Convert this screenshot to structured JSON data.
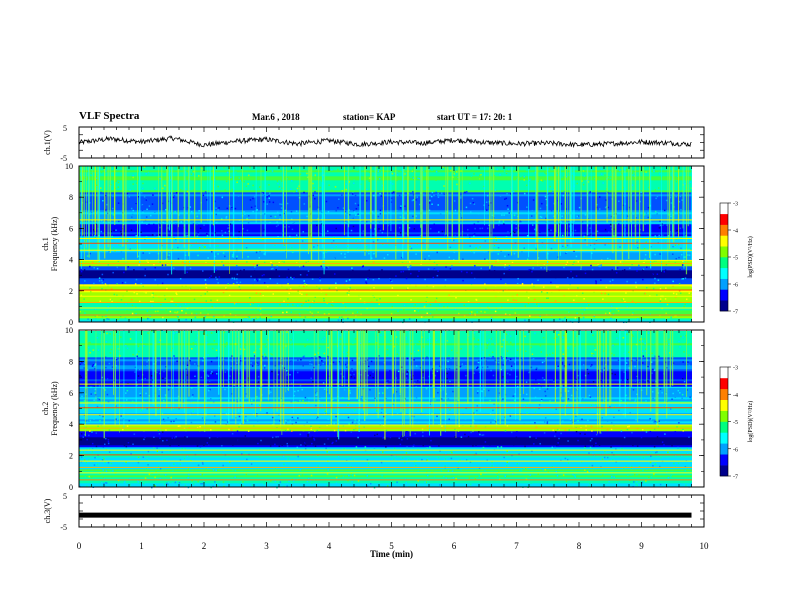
{
  "header": {
    "title": "VLF Spectra",
    "date": "Mar.6 , 2018",
    "station": "station= KAP",
    "start": "start UT = 17: 20: 1"
  },
  "colorbar": {
    "label": "log(PSD)(V²/Hz)",
    "ticks": [
      "-3",
      "-4",
      "-5",
      "-6",
      "-7"
    ],
    "range": [
      -7,
      -3
    ],
    "colors": [
      "#00008c",
      "#0000ff",
      "#00a0ff",
      "#00ffff",
      "#00ff80",
      "#80ff00",
      "#ffff00",
      "#ff8000",
      "#ff0000",
      "#ffffff"
    ]
  },
  "chart_data": [
    {
      "type": "line",
      "panel": "ch1-waveform",
      "ylabel": "ch.1(V)",
      "ylim": [
        -5,
        5
      ],
      "yticks": [
        "5",
        "-5"
      ],
      "xlim": [
        0,
        10
      ],
      "x": [
        0,
        0.5,
        1,
        1.5,
        2,
        2.5,
        3,
        3.5,
        4,
        4.5,
        5,
        5.5,
        6,
        6.5,
        7,
        7.5,
        8,
        8.5,
        9,
        9.5,
        9.8
      ],
      "y": [
        0,
        1.2,
        0.2,
        1.4,
        -0.8,
        0.4,
        1.0,
        -0.4,
        0.6,
        -0.6,
        0.2,
        -0.2,
        0.8,
        0.0,
        -0.4,
        -0.2,
        -0.8,
        -0.4,
        0.2,
        -0.2,
        -0.6
      ]
    },
    {
      "type": "heatmap",
      "panel": "ch1-spectrogram",
      "ylabel": "ch.1",
      "ylabel2": "Frequency (kHz)",
      "xlim": [
        0,
        10
      ],
      "ylim": [
        0,
        10
      ],
      "yticks": [
        "0",
        "2",
        "4",
        "6",
        "8",
        "10"
      ]
    },
    {
      "type": "heatmap",
      "panel": "ch2-spectrogram",
      "ylabel": "ch.2",
      "ylabel2": "Frequency (kHz)",
      "xlim": [
        0,
        10
      ],
      "ylim": [
        0,
        10
      ],
      "yticks": [
        "0",
        "2",
        "4",
        "6",
        "8",
        "10"
      ]
    },
    {
      "type": "line",
      "panel": "ch3-waveform",
      "ylabel": "ch.3(V)",
      "ylim": [
        -5,
        5
      ],
      "yticks": [
        "5",
        "-5"
      ],
      "xlim": [
        0,
        10
      ],
      "x": [
        0,
        9.8
      ],
      "y": [
        -1.3,
        -1.3
      ]
    }
  ],
  "xaxis": {
    "label": "Time (min)",
    "ticks": [
      "0",
      "1",
      "2",
      "3",
      "4",
      "5",
      "6",
      "7",
      "8",
      "9",
      "10"
    ]
  }
}
